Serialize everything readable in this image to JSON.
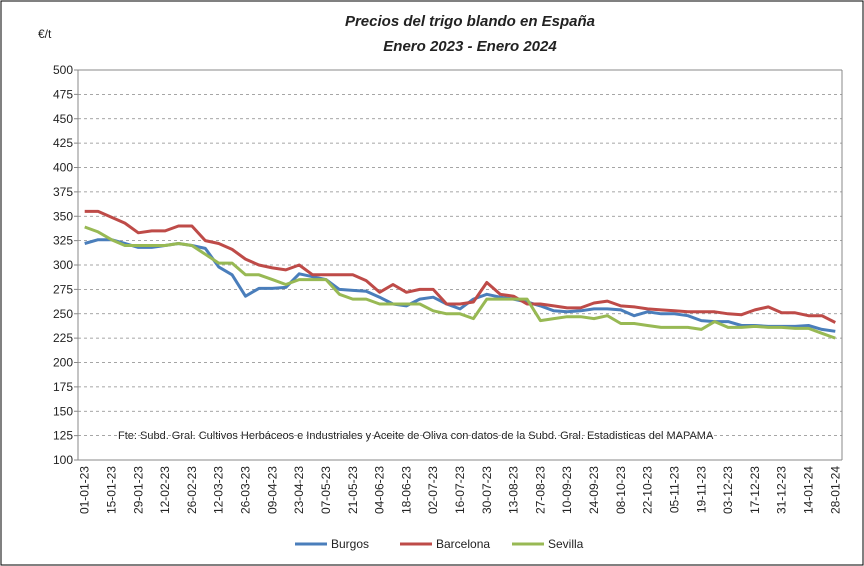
{
  "chart_data": {
    "type": "line",
    "title": "Precios del trigo blando en España",
    "subtitle": "Enero 2023 - Enero 2024",
    "y_label": "€/t",
    "annotation": "Fte: Subd. Gral. Cultivos Herbáceos e Industriales y Aceite de Oliva  con datos de la Subd. Gral. Estadisticas del MAPAMA",
    "categories": [
      "01-01-23",
      null,
      "15-01-23",
      null,
      "29-01-23",
      null,
      "12-02-23",
      null,
      "26-02-23",
      null,
      "12-03-23",
      null,
      "26-03-23",
      null,
      "09-04-23",
      null,
      "23-04-23",
      null,
      "07-05-23",
      null,
      "21-05-23",
      null,
      "04-06-23",
      null,
      "18-06-23",
      null,
      "02-07-23",
      null,
      "16-07-23",
      null,
      "30-07-23",
      null,
      "13-08-23",
      null,
      "27-08-23",
      null,
      "10-09-23",
      null,
      "24-09-23",
      null,
      "08-10-23",
      null,
      "22-10-23",
      null,
      "05-11-23",
      null,
      "19-11-23",
      null,
      "03-12-23",
      null,
      "17-12-23",
      null,
      "31-12-23",
      null,
      "14-01-24",
      null,
      "28-01-24"
    ],
    "series": [
      {
        "name": "Burgos",
        "color": "#4a7ebb",
        "values": [
          322,
          326,
          326,
          322,
          318,
          318,
          320,
          322,
          320,
          317,
          298,
          290,
          268,
          276,
          276,
          277,
          291,
          288,
          285,
          275,
          274,
          273,
          267,
          260,
          258,
          265,
          267,
          260,
          255,
          265,
          270,
          267,
          265,
          262,
          258,
          253,
          252,
          253,
          255,
          255,
          254,
          248,
          252,
          250,
          250,
          248,
          243,
          242,
          242,
          238,
          238,
          237,
          237,
          237,
          238,
          234,
          232
        ]
      },
      {
        "name": "Barcelona",
        "color": "#be4b48",
        "values": [
          355,
          355,
          349,
          343,
          333,
          335,
          335,
          340,
          340,
          325,
          322,
          316,
          306,
          300,
          297,
          295,
          300,
          290,
          290,
          290,
          290,
          284,
          272,
          280,
          272,
          275,
          275,
          260,
          260,
          262,
          282,
          270,
          268,
          260,
          260,
          258,
          256,
          256,
          261,
          263,
          258,
          257,
          255,
          254,
          253,
          252,
          252,
          252,
          250,
          249,
          254,
          257,
          251,
          251,
          248,
          248,
          241
        ]
      },
      {
        "name": "Sevilla",
        "color": "#98b954",
        "values": [
          339,
          334,
          326,
          320,
          320,
          320,
          320,
          322,
          320,
          311,
          302,
          302,
          290,
          290,
          285,
          280,
          285,
          285,
          285,
          270,
          265,
          265,
          260,
          260,
          260,
          260,
          253,
          250,
          250,
          245,
          265,
          265,
          265,
          265,
          243,
          245,
          247,
          247,
          245,
          248,
          240,
          240,
          238,
          236,
          236,
          236,
          234,
          242,
          236,
          236,
          237,
          236,
          236,
          235,
          235,
          230,
          225
        ]
      }
    ],
    "ylim": [
      100,
      500
    ],
    "yticks": [
      100,
      125,
      150,
      175,
      200,
      225,
      250,
      275,
      300,
      325,
      350,
      375,
      400,
      425,
      450,
      475,
      500
    ],
    "grid": true
  }
}
